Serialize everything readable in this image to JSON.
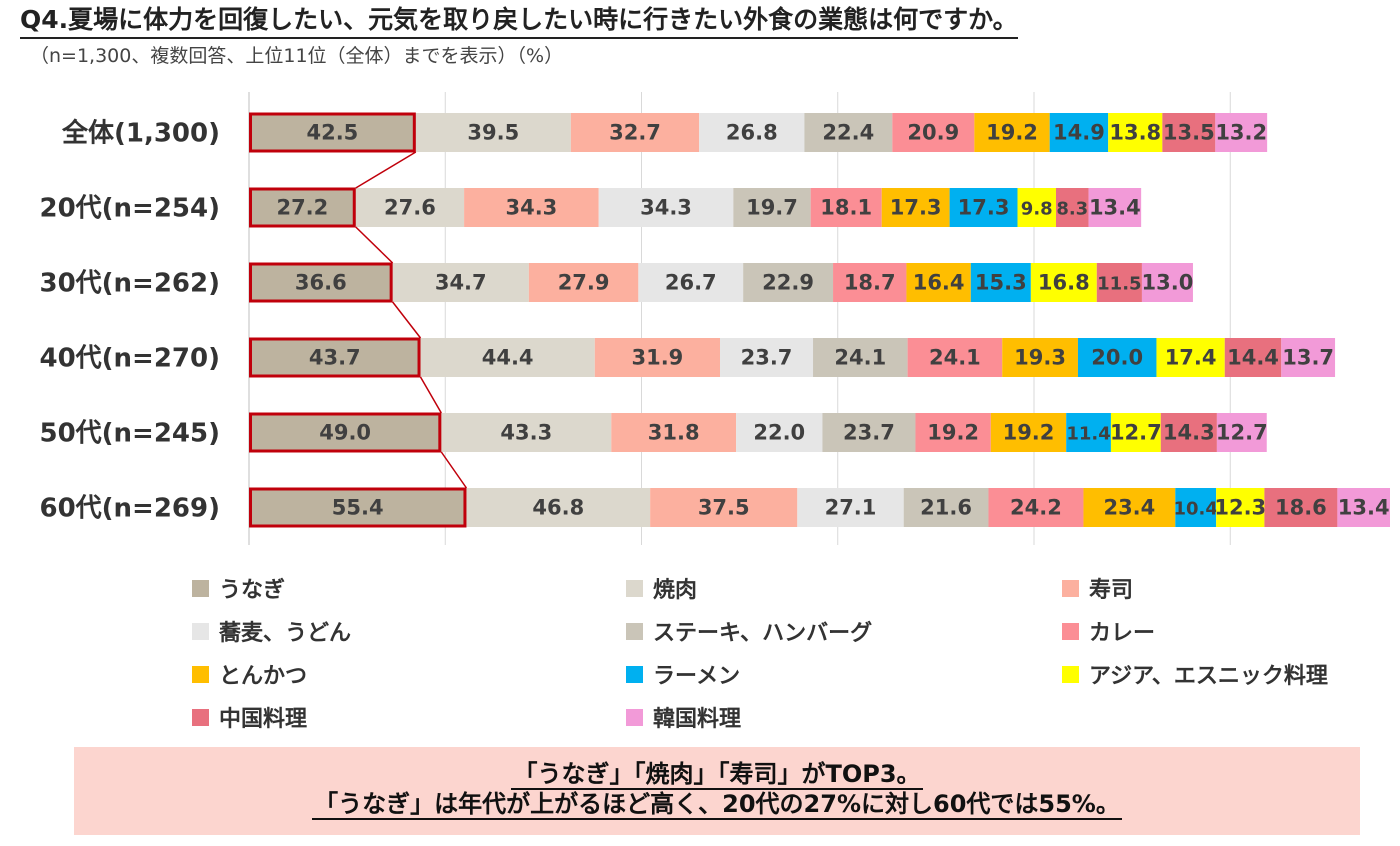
{
  "title": "Q4.夏場に体力を回復したい、元気を取り戻したい時に行きたい外食の業態は何ですか。",
  "subtitle": "（n=1,300、複数回答、上位11位（全体）までを表示）（%）",
  "note": {
    "line1": "「うなぎ」「焼肉」「寿司」がTOP3。",
    "line2": "「うなぎ」は年代が上がるほど高く、20代の27%に対し60代では55%。"
  },
  "chart_data": {
    "type": "bar",
    "orientation": "horizontal",
    "stacked": true,
    "categories": [
      "全体(1,300)",
      "20代(n=254)",
      "30代(n=262)",
      "40代(n=270)",
      "50代(n=245)",
      "60代(n=269)"
    ],
    "series": [
      {
        "name": "うなぎ",
        "color": "#bdb39f",
        "values": [
          42.5,
          27.2,
          36.6,
          43.7,
          49.0,
          55.4
        ]
      },
      {
        "name": "焼肉",
        "color": "#dcd8cd",
        "values": [
          39.5,
          27.6,
          34.7,
          44.4,
          43.3,
          46.8
        ]
      },
      {
        "name": "寿司",
        "color": "#fcb09f",
        "values": [
          32.7,
          34.3,
          27.9,
          31.9,
          31.8,
          37.5
        ]
      },
      {
        "name": "蕎麦、うどん",
        "color": "#e6e6e6",
        "values": [
          26.8,
          34.3,
          26.7,
          23.7,
          22.0,
          27.1
        ]
      },
      {
        "name": "ステーキ、ハンバーグ",
        "color": "#cac5b8",
        "values": [
          22.4,
          19.7,
          22.9,
          24.1,
          23.7,
          21.6
        ]
      },
      {
        "name": "カレー",
        "color": "#fb8e95",
        "values": [
          20.9,
          18.1,
          18.7,
          24.1,
          19.2,
          24.2
        ]
      },
      {
        "name": "とんかつ",
        "color": "#ffbe00",
        "values": [
          19.2,
          17.3,
          16.4,
          19.3,
          19.2,
          23.4
        ]
      },
      {
        "name": "ラーメン",
        "color": "#00b0f0",
        "values": [
          14.9,
          17.3,
          15.3,
          20.0,
          11.4,
          10.4
        ]
      },
      {
        "name": "アジア、エスニック料理",
        "color": "#ffff00",
        "values": [
          13.8,
          9.8,
          16.8,
          17.4,
          12.7,
          12.3
        ]
      },
      {
        "name": "中国料理",
        "color": "#e8707e",
        "values": [
          13.5,
          8.3,
          11.5,
          14.4,
          14.3,
          18.6
        ]
      },
      {
        "name": "韓国料理",
        "color": "#f29ad8",
        "values": [
          13.2,
          13.4,
          13.0,
          13.7,
          12.7,
          13.4
        ]
      }
    ],
    "highlight_series": "うなぎ",
    "highlight_color": "#c0000b",
    "grid": true,
    "legend": "bottom"
  }
}
